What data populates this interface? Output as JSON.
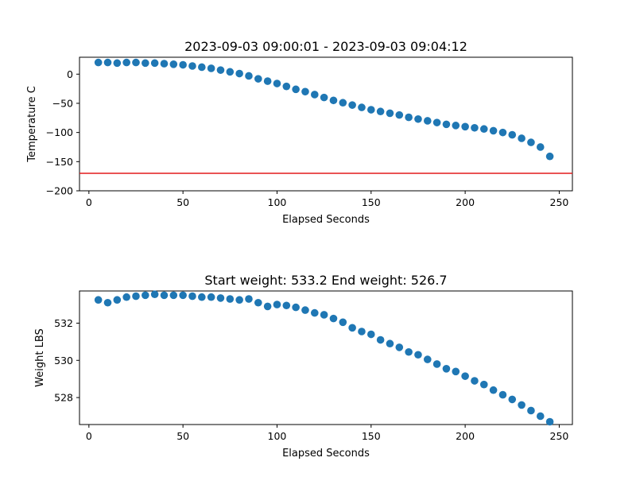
{
  "chart_data": [
    {
      "type": "scatter",
      "title": "2023-09-03 09:00:01 - 2023-09-03 09:04:12",
      "xlabel": "Elapsed Seconds",
      "ylabel": "Temperature C",
      "xlim": [
        -5,
        257
      ],
      "ylim": [
        -200,
        29
      ],
      "xticks": [
        0,
        50,
        100,
        150,
        200,
        250
      ],
      "yticks": [
        0,
        -50,
        -100,
        -150,
        -200
      ],
      "marker_color": "#1f77b4",
      "reference_line": {
        "y": -170,
        "color": "#e31a1c"
      },
      "series": [
        {
          "x": [
            5,
            10,
            15,
            20,
            25,
            30,
            35,
            40,
            45,
            50,
            55,
            60,
            65,
            70,
            75,
            80,
            85,
            90,
            95,
            100,
            105,
            110,
            115,
            120,
            125,
            130,
            135,
            140,
            145,
            150,
            155,
            160,
            165,
            170,
            175,
            180,
            185,
            190,
            195,
            200,
            205,
            210,
            215,
            220,
            225,
            230,
            235,
            240,
            245
          ],
          "values": [
            20,
            20,
            19,
            20,
            20,
            19,
            19,
            18,
            17,
            16,
            14,
            12,
            10,
            7,
            4,
            1,
            -3,
            -8,
            -12,
            -16,
            -21,
            -26,
            -30,
            -35,
            -40,
            -45,
            -49,
            -53,
            -57,
            -61,
            -64,
            -67,
            -70,
            -74,
            -77,
            -80,
            -83,
            -86,
            -88,
            -90,
            -92,
            -94,
            -97,
            -100,
            -104,
            -110,
            -117,
            -125,
            -141
          ]
        }
      ]
    },
    {
      "type": "scatter",
      "title": "Start weight: 533.2 End weight: 526.7",
      "xlabel": "Elapsed Seconds",
      "ylabel": "Weight LBS",
      "xlim": [
        -5,
        257
      ],
      "ylim": [
        526.55,
        533.73
      ],
      "xticks": [
        0,
        50,
        100,
        150,
        200,
        250
      ],
      "yticks": [
        528,
        530,
        532
      ],
      "marker_color": "#1f77b4",
      "series": [
        {
          "x": [
            5,
            10,
            15,
            20,
            25,
            30,
            35,
            40,
            45,
            50,
            55,
            60,
            65,
            70,
            75,
            80,
            85,
            90,
            95,
            100,
            105,
            110,
            115,
            120,
            125,
            130,
            135,
            140,
            145,
            150,
            155,
            160,
            165,
            170,
            175,
            180,
            185,
            190,
            195,
            200,
            205,
            210,
            215,
            220,
            225,
            230,
            235,
            240,
            245
          ],
          "values": [
            533.25,
            533.1,
            533.25,
            533.4,
            533.45,
            533.5,
            533.55,
            533.5,
            533.5,
            533.5,
            533.45,
            533.4,
            533.4,
            533.35,
            533.3,
            533.25,
            533.3,
            533.1,
            532.9,
            533.0,
            532.95,
            532.85,
            532.7,
            532.55,
            532.45,
            532.25,
            532.05,
            531.75,
            531.55,
            531.4,
            531.1,
            530.9,
            530.7,
            530.45,
            530.3,
            530.05,
            529.8,
            529.55,
            529.4,
            529.15,
            528.9,
            528.7,
            528.4,
            528.15,
            527.9,
            527.6,
            527.3,
            527.0,
            526.7
          ]
        }
      ]
    }
  ]
}
